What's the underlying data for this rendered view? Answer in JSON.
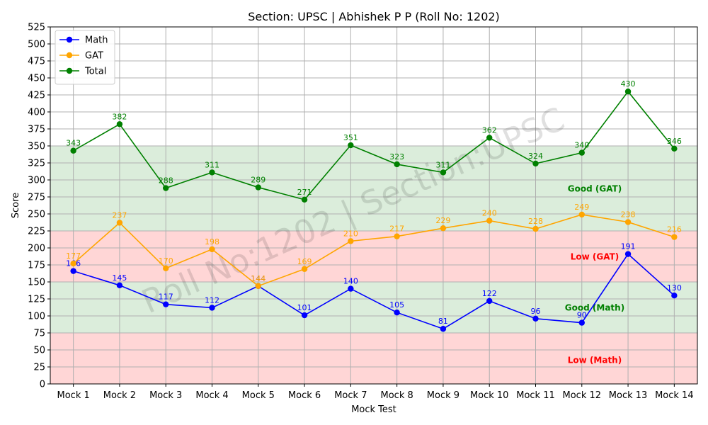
{
  "chart_data": {
    "type": "line",
    "title": "Section: UPSC | Abhishek P P (Roll No: 1202)",
    "xlabel": "Mock Test",
    "ylabel": "Score",
    "ylim": [
      0,
      525
    ],
    "ytick_step": 25,
    "grid": true,
    "legend_position": "top-left",
    "watermark": "Roll No:1202 | Section:UPSC",
    "categories": [
      "Mock 1",
      "Mock 2",
      "Mock 3",
      "Mock 4",
      "Mock 5",
      "Mock 6",
      "Mock 7",
      "Mock 8",
      "Mock 9",
      "Mock 10",
      "Mock 11",
      "Mock 12",
      "Mock 13",
      "Mock 14"
    ],
    "series": [
      {
        "name": "Math",
        "color": "#0000ff",
        "values": [
          166,
          145,
          117,
          112,
          144,
          101,
          140,
          105,
          81,
          122,
          96,
          90,
          191,
          130
        ]
      },
      {
        "name": "GAT",
        "color": "#ffa500",
        "values": [
          177,
          237,
          170,
          198,
          144,
          169,
          210,
          217,
          229,
          240,
          228,
          249,
          238,
          216
        ]
      },
      {
        "name": "Total",
        "color": "#008000",
        "values": [
          343,
          382,
          288,
          311,
          289,
          271,
          351,
          323,
          311,
          362,
          324,
          340,
          430,
          346
        ]
      }
    ],
    "bands": [
      {
        "from": 0,
        "to": 75,
        "color": "#ffd6d6",
        "label": "Low (Math)",
        "label_color": "#ff0000",
        "label_y": 35
      },
      {
        "from": 75,
        "to": 150,
        "color": "#dbeddb",
        "label": "Good (Math)",
        "label_color": "#008000",
        "label_y": 112
      },
      {
        "from": 150,
        "to": 225,
        "color": "#ffd6d6",
        "label": "Low (GAT)",
        "label_color": "#ff0000",
        "label_y": 187
      },
      {
        "from": 225,
        "to": 350,
        "color": "#dbeddb",
        "label": "Good (GAT)",
        "label_color": "#008000",
        "label_y": 287
      }
    ]
  }
}
